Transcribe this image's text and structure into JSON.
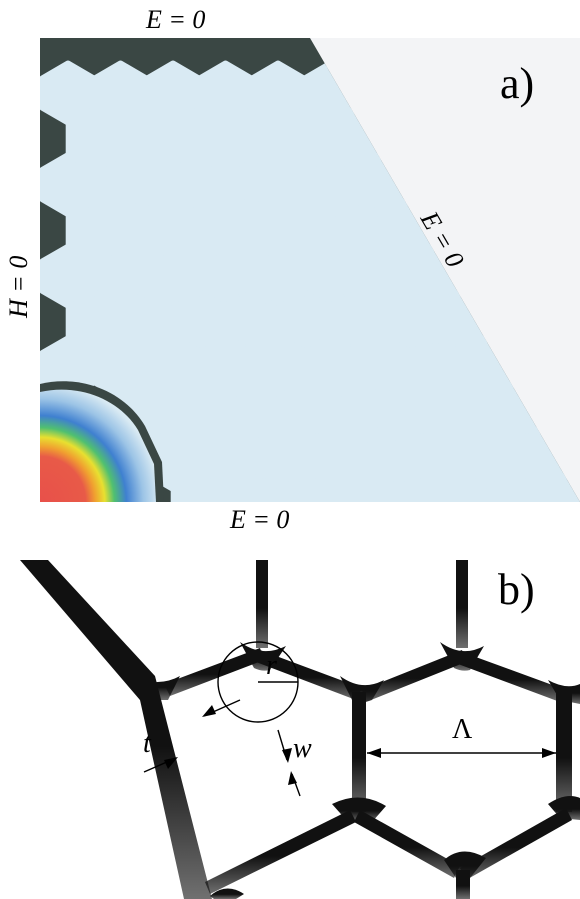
{
  "panel_a": {
    "label": "a)",
    "boundary_top": "E  = 0",
    "boundary_bottom": "E  = 0",
    "boundary_diagonal": "E = 0",
    "boundary_left": "H = 0",
    "colors": {
      "cladding": "#3a4744",
      "hole": "#d9eaf3",
      "background": "#f3f4f6"
    }
  },
  "panel_b": {
    "label": "b)",
    "symbols": {
      "r": "r",
      "lambda": "Λ",
      "t": "t",
      "w": "w"
    }
  }
}
